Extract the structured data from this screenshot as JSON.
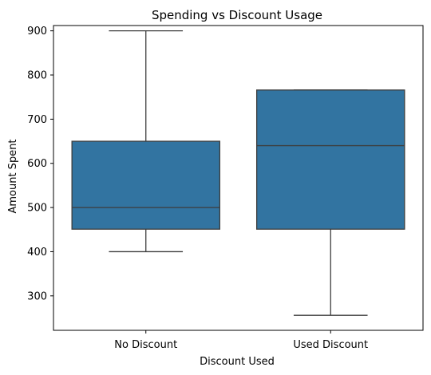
{
  "chart_data": {
    "type": "box",
    "title": "Spending vs Discount Usage",
    "xlabel": "Discount Used",
    "ylabel": "Amount Spent",
    "ylim": [
      222,
      912
    ],
    "yticks": [
      300,
      400,
      500,
      600,
      700,
      800,
      900
    ],
    "grid": false,
    "legend": "none",
    "box_color": "#3274a1",
    "line_color": "#3d3d3d",
    "categories": [
      "No Discount",
      "Used Discount"
    ],
    "boxes": [
      {
        "category": "No Discount",
        "whisker_low": 400,
        "q1": 451,
        "median": 500,
        "q3": 650,
        "whisker_high": 900
      },
      {
        "category": "Used Discount",
        "whisker_low": 256,
        "q1": 451,
        "median": 640,
        "q3": 766,
        "whisker_high": 766
      }
    ]
  }
}
